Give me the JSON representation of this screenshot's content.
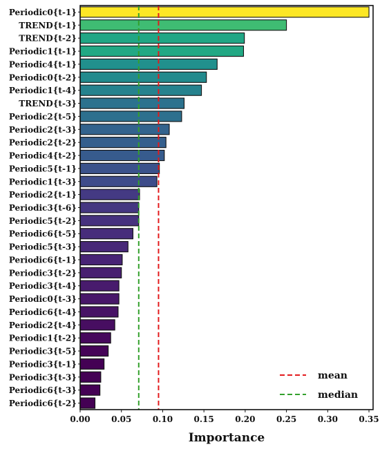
{
  "chart_data": {
    "type": "bar",
    "orientation": "horizontal",
    "title": "",
    "xlabel": "Importance",
    "ylabel": "",
    "xlim": [
      0,
      0.355
    ],
    "xticks": [
      0.0,
      0.05,
      0.1,
      0.15,
      0.2,
      0.25,
      0.3,
      0.35
    ],
    "xtick_labels": [
      "0.00",
      "0.05",
      "0.10",
      "0.15",
      "0.20",
      "0.25",
      "0.30",
      "0.35"
    ],
    "grid": false,
    "colormap": "viridis",
    "legend": {
      "placement": "bottom-right",
      "entries": [
        {
          "label": "mean",
          "color": "#e31a1c",
          "style": "dashed"
        },
        {
          "label": "median",
          "color": "#33a02c",
          "style": "dashed"
        }
      ]
    },
    "reference_lines": {
      "mean": 0.095,
      "median": 0.071
    },
    "bars": [
      {
        "label": "Periodic0{t-1}",
        "value": 0.35,
        "color": "#fde725"
      },
      {
        "label": "TREND{t-1}",
        "value": 0.25,
        "color": "#3fbc73"
      },
      {
        "label": "TREND{t-2}",
        "value": 0.199,
        "color": "#21a685"
      },
      {
        "label": "Periodic1{t-1}",
        "value": 0.198,
        "color": "#22a884"
      },
      {
        "label": "Periodic4{t-1}",
        "value": 0.166,
        "color": "#21908d"
      },
      {
        "label": "Periodic0{t-2}",
        "value": 0.153,
        "color": "#238a8d"
      },
      {
        "label": "Periodic1{t-4}",
        "value": 0.147,
        "color": "#26828e"
      },
      {
        "label": "TREND{t-3}",
        "value": 0.126,
        "color": "#2c728e"
      },
      {
        "label": "Periodic2{t-5}",
        "value": 0.123,
        "color": "#2d708e"
      },
      {
        "label": "Periodic2{t-3}",
        "value": 0.108,
        "color": "#33638d"
      },
      {
        "label": "Periodic2{t-2}",
        "value": 0.104,
        "color": "#355f8d"
      },
      {
        "label": "Periodic4{t-2}",
        "value": 0.102,
        "color": "#375b8d"
      },
      {
        "label": "Periodic5{t-1}",
        "value": 0.096,
        "color": "#3b528b"
      },
      {
        "label": "Periodic1{t-3}",
        "value": 0.093,
        "color": "#3e4c8a"
      },
      {
        "label": "Periodic2{t-1}",
        "value": 0.072,
        "color": "#443a83"
      },
      {
        "label": "Periodic3{t-6}",
        "value": 0.071,
        "color": "#453781"
      },
      {
        "label": "Periodic5{t-2}",
        "value": 0.071,
        "color": "#46327e"
      },
      {
        "label": "Periodic6{t-5}",
        "value": 0.064,
        "color": "#472d7b"
      },
      {
        "label": "Periodic5{t-3}",
        "value": 0.058,
        "color": "#482878"
      },
      {
        "label": "Periodic6{t-1}",
        "value": 0.051,
        "color": "#482475"
      },
      {
        "label": "Periodic3{t-2}",
        "value": 0.05,
        "color": "#481f70"
      },
      {
        "label": "Periodic3{t-4}",
        "value": 0.047,
        "color": "#481b6d"
      },
      {
        "label": "Periodic0{t-3}",
        "value": 0.047,
        "color": "#481769"
      },
      {
        "label": "Periodic6{t-4}",
        "value": 0.046,
        "color": "#471365"
      },
      {
        "label": "Periodic2{t-4}",
        "value": 0.042,
        "color": "#470e61"
      },
      {
        "label": "Periodic1{t-2}",
        "value": 0.037,
        "color": "#46085c"
      },
      {
        "label": "Periodic3{t-5}",
        "value": 0.034,
        "color": "#450457"
      },
      {
        "label": "Periodic3{t-1}",
        "value": 0.029,
        "color": "#440154"
      },
      {
        "label": "Periodic3{t-3}",
        "value": 0.025,
        "color": "#440154"
      },
      {
        "label": "Periodic6{t-3}",
        "value": 0.024,
        "color": "#440154"
      },
      {
        "label": "Periodic6{t-2}",
        "value": 0.018,
        "color": "#440154"
      }
    ]
  }
}
